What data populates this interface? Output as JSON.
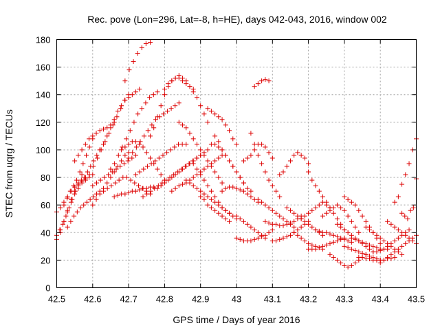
{
  "chart_data": {
    "type": "scatter",
    "title": "Rec. pove (Lon=296, Lat=-8, h=HE), days 042-043, 2016, window 002",
    "xlabel": "GPS time / Days of year 2016",
    "ylabel": "STEC from uqrg / TECUs",
    "xlim": [
      42.5,
      43.5
    ],
    "ylim": [
      0,
      180
    ],
    "xticks": [
      "42.5",
      "42.6",
      "42.7",
      "42.8",
      "42.9",
      "43",
      "43.1",
      "43.2",
      "43.3",
      "43.4",
      "43.5"
    ],
    "yticks": [
      "0",
      "20",
      "40",
      "60",
      "80",
      "100",
      "120",
      "140",
      "160",
      "180"
    ],
    "grid": true,
    "marker": "plus",
    "color": "#dd0000",
    "series": [
      {
        "tracks": [
          {
            "x0": 42.5,
            "x1": 42.62,
            "y": [
              38,
              42,
              46,
              52,
              58,
              64,
              70,
              74,
              78,
              80,
              84,
              88,
              92,
              96,
              100
            ]
          },
          {
            "x0": 42.5,
            "x1": 42.58,
            "y": [
              35,
              40,
              48,
              55,
              62,
              68,
              72,
              76,
              80
            ]
          },
          {
            "x0": 42.5,
            "x1": 42.6,
            "y": [
              55,
              58,
              62,
              66,
              70,
              73,
              75,
              77,
              79,
              80,
              82
            ]
          },
          {
            "x0": 42.51,
            "x1": 42.57,
            "y": [
              42,
              48,
              56,
              64,
              70,
              76,
              82
            ]
          },
          {
            "x0": 42.52,
            "x1": 42.6,
            "y": [
              60,
              65,
              70,
              74,
              78,
              84,
              90,
              96,
              102,
              108
            ]
          },
          {
            "x0": 42.53,
            "x1": 42.62,
            "y": [
              44,
              48,
              52,
              55,
              58,
              60,
              62,
              64,
              66,
              68,
              70
            ]
          },
          {
            "x0": 42.55,
            "x1": 42.66,
            "y": [
              92,
              96,
              100,
              104,
              108,
              110,
              112,
              114,
              115,
              116,
              118,
              120
            ]
          },
          {
            "x0": 42.58,
            "x1": 42.7,
            "y": [
              78,
              82,
              88,
              94,
              100,
              106,
              112,
              118,
              124,
              130,
              136,
              140
            ]
          },
          {
            "x0": 42.6,
            "x1": 42.7,
            "y": [
              60,
              64,
              68,
              72,
              76,
              80,
              84,
              88,
              92,
              96,
              98
            ]
          },
          {
            "x0": 42.6,
            "x1": 42.72,
            "y": [
              74,
              76,
              78,
              80,
              82,
              84,
              86,
              88,
              90,
              92,
              94,
              96
            ]
          },
          {
            "x0": 42.62,
            "x1": 42.73,
            "y": [
              100,
              104,
              110,
              116,
              122,
              128,
              132,
              136,
              138,
              140,
              142,
              144
            ]
          },
          {
            "x0": 42.63,
            "x1": 42.76,
            "y": [
              70,
              72,
              74,
              76,
              78,
              80,
              80,
              78,
              76,
              74,
              72,
              70,
              68
            ]
          },
          {
            "x0": 42.65,
            "x1": 42.78,
            "y": [
              86,
              90,
              96,
              102,
              108,
              114,
              120,
              126,
              130,
              134,
              138,
              140,
              142
            ]
          },
          {
            "x0": 42.66,
            "x1": 42.77,
            "y": [
              66,
              67,
              68,
              68,
              69,
              70,
              70,
              71,
              72,
              72,
              73,
              73
            ]
          },
          {
            "x0": 42.68,
            "x1": 42.8,
            "y": [
              100,
              102,
              104,
              106,
              106,
              104,
              102,
              98,
              94,
              90,
              86,
              82,
              78
            ]
          },
          {
            "x0": 42.69,
            "x1": 42.76,
            "y": [
              150,
              158,
              164,
              170,
              174,
              177,
              178
            ]
          },
          {
            "x0": 42.7,
            "x1": 42.84,
            "y": [
              94,
              98,
              102,
              106,
              110,
              114,
              118,
              122,
              124,
              126,
              128,
              130,
              132,
              134
            ]
          },
          {
            "x0": 42.72,
            "x1": 42.86,
            "y": [
              82,
              84,
              86,
              88,
              90,
              92,
              94,
              96,
              98,
              100,
              102,
              104,
              104,
              104
            ]
          },
          {
            "x0": 42.74,
            "x1": 42.9,
            "y": [
              66,
              68,
              70,
              72,
              74,
              76,
              78,
              80,
              82,
              84,
              86,
              88,
              90,
              92,
              94,
              96
            ]
          },
          {
            "x0": 42.76,
            "x1": 42.88,
            "y": [
              110,
              116,
              124,
              132,
              140,
              146,
              150,
              152,
              152,
              150,
              148,
              146,
              144
            ]
          },
          {
            "x0": 42.78,
            "x1": 42.92,
            "y": [
              72,
              74,
              76,
              78,
              80,
              82,
              84,
              86,
              88,
              90,
              92,
              94,
              96,
              98,
              100
            ]
          },
          {
            "x0": 42.8,
            "x1": 42.92,
            "y": [
              144,
              148,
              150,
              152,
              154,
              152,
              150,
              146,
              142,
              138,
              132,
              126,
              120
            ]
          },
          {
            "x0": 42.82,
            "x1": 42.96,
            "y": [
              70,
              72,
              74,
              75,
              76,
              78,
              80,
              82,
              84,
              86,
              88,
              90,
              92,
              94,
              96
            ]
          },
          {
            "x0": 42.84,
            "x1": 42.96,
            "y": [
              120,
              118,
              116,
              112,
              108,
              104,
              100,
              96,
              92,
              88,
              84,
              80,
              76
            ]
          },
          {
            "x0": 42.86,
            "x1": 42.98,
            "y": [
              78,
              76,
              74,
              72,
              70,
              68,
              66,
              64,
              62,
              60,
              58,
              56,
              54
            ]
          },
          {
            "x0": 42.88,
            "x1": 43,
            "y": [
              90,
              86,
              82,
              78,
              74,
              70,
              66,
              62,
              58,
              56,
              54,
              52,
              50
            ]
          },
          {
            "x0": 42.9,
            "x1": 42.98,
            "y": [
              66,
              64,
              60,
              58,
              56,
              54,
              52,
              50,
              48
            ]
          },
          {
            "x0": 42.92,
            "x1": 43,
            "y": [
              130,
              128,
              126,
              124,
              122,
              118,
              114,
              108,
              104
            ]
          },
          {
            "x0": 42.93,
            "x1": 43.02,
            "y": [
              104,
              104,
              102,
              100,
              96,
              92,
              88,
              84,
              80,
              76
            ]
          },
          {
            "x0": 42.94,
            "x1": 43.04,
            "y": [
              110,
              106,
              100,
              96,
              92,
              88,
              84,
              80,
              76,
              72,
              70
            ]
          },
          {
            "x0": 42.96,
            "x1": 43.06,
            "y": [
              70,
              72,
              73,
              73,
              72,
              71,
              70,
              68,
              66,
              64,
              62
            ]
          },
          {
            "x0": 43,
            "x1": 43.08,
            "y": [
              52,
              50,
              48,
              46,
              44,
              42,
              40,
              38,
              36
            ]
          },
          {
            "x0": 43,
            "x1": 43.1,
            "y": [
              36,
              35,
              34,
              34,
              34,
              35,
              36,
              37,
              38,
              40,
              42
            ]
          },
          {
            "x0": 43.02,
            "x1": 43.1,
            "y": [
              92,
              94,
              96,
              100,
              104,
              104,
              102,
              98,
              94
            ]
          },
          {
            "x0": 43.04,
            "x1": 43.12,
            "y": [
              112,
              104,
              96,
              90,
              84,
              78,
              74,
              70,
              66
            ]
          },
          {
            "x0": 43.05,
            "x1": 43.09,
            "y": [
              146,
              148,
              150,
              151,
              150
            ]
          },
          {
            "x0": 43.06,
            "x1": 43.16,
            "y": [
              64,
              62,
              60,
              58,
              56,
              54,
              52,
              50,
              48,
              46,
              44
            ]
          },
          {
            "x0": 43.08,
            "x1": 43.18,
            "y": [
              48,
              47,
              46,
              46,
              45,
              45,
              46,
              47,
              48,
              50,
              52
            ]
          },
          {
            "x0": 43.1,
            "x1": 43.2,
            "y": [
              34,
              34,
              35,
              36,
              37,
              38,
              40,
              42,
              44,
              46,
              48
            ]
          },
          {
            "x0": 43.12,
            "x1": 43.2,
            "y": [
              82,
              84,
              88,
              92,
              96,
              98,
              96,
              94,
              90
            ]
          },
          {
            "x0": 43.14,
            "x1": 43.24,
            "y": [
              58,
              56,
              54,
              52,
              50,
              48,
              46,
              44,
              42,
              40,
              38
            ]
          },
          {
            "x0": 43.16,
            "x1": 43.24,
            "y": [
              40,
              38,
              36,
              34,
              32,
              31,
              30,
              29,
              28
            ]
          },
          {
            "x0": 43.18,
            "x1": 43.26,
            "y": [
              50,
              52,
              54,
              56,
              58,
              60,
              62,
              60,
              58
            ]
          },
          {
            "x0": 43.2,
            "x1": 43.3,
            "y": [
              84,
              78,
              74,
              70,
              66,
              62,
              58,
              54,
              50,
              46,
              42
            ]
          },
          {
            "x0": 43.2,
            "x1": 43.3,
            "y": [
              28,
              28,
              28,
              29,
              30,
              31,
              32,
              33,
              34,
              35,
              36
            ]
          },
          {
            "x0": 43.22,
            "x1": 43.32,
            "y": [
              42,
              41,
              40,
              40,
              39,
              38,
              37,
              36,
              35,
              34,
              33
            ]
          },
          {
            "x0": 43.24,
            "x1": 43.34,
            "y": [
              52,
              54,
              56,
              58,
              60,
              58,
              56,
              52,
              48,
              44,
              40
            ]
          },
          {
            "x0": 43.26,
            "x1": 43.36,
            "y": [
              24,
              22,
              20,
              18,
              16,
              15,
              16,
              18,
              20,
              22,
              24
            ]
          },
          {
            "x0": 43.28,
            "x1": 43.38,
            "y": [
              46,
              44,
              42,
              40,
              38,
              36,
              34,
              32,
              30,
              28,
              26
            ]
          },
          {
            "x0": 43.3,
            "x1": 43.4,
            "y": [
              66,
              64,
              62,
              60,
              56,
              52,
              48,
              44,
              40,
              36,
              32
            ]
          },
          {
            "x0": 43.3,
            "x1": 43.4,
            "y": [
              30,
              29,
              28,
              27,
              26,
              25,
              24,
              23,
              22,
              21,
              20
            ]
          },
          {
            "x0": 43.32,
            "x1": 43.42,
            "y": [
              36,
              35,
              34,
              33,
              32,
              31,
              30,
              29,
              28,
              28,
              28
            ]
          },
          {
            "x0": 43.34,
            "x1": 43.44,
            "y": [
              22,
              22,
              21,
              21,
              20,
              20,
              20,
              20,
              21,
              21,
              22
            ]
          },
          {
            "x0": 43.36,
            "x1": 43.46,
            "y": [
              44,
              42,
              40,
              38,
              36,
              34,
              32,
              30,
              28,
              26,
              24
            ]
          },
          {
            "x0": 43.38,
            "x1": 43.48,
            "y": [
              26,
              26,
              27,
              28,
              30,
              32,
              34,
              36,
              38,
              40,
              42
            ]
          },
          {
            "x0": 43.4,
            "x1": 43.5,
            "y": [
              18,
              20,
              22,
              24,
              26,
              28,
              30,
              32,
              34,
              36,
              38
            ]
          },
          {
            "x0": 43.42,
            "x1": 43.5,
            "y": [
              48,
              46,
              44,
              42,
              40,
              38,
              36,
              34,
              32
            ]
          },
          {
            "x0": 43.44,
            "x1": 43.5,
            "y": [
              62,
              66,
              75,
              82,
              90,
              100,
              108
            ]
          },
          {
            "x0": 43.46,
            "x1": 43.5,
            "y": [
              54,
              52,
              50,
              56,
              58,
              79
            ]
          }
        ]
      }
    ]
  }
}
